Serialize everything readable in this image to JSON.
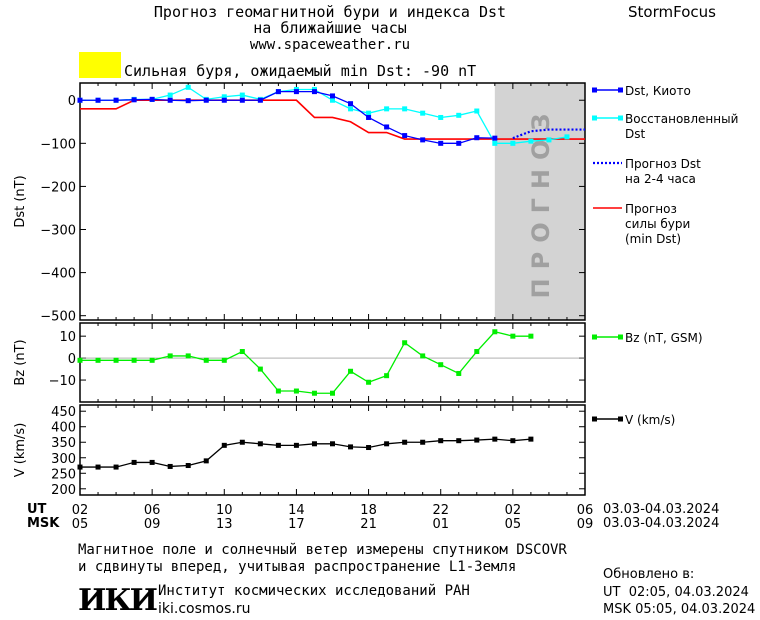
{
  "header": {
    "title_line1": "Прогноз геомагнитной бури и индекса Dst",
    "title_line2": "на ближайшие часы",
    "url": "www.spaceweather.ru",
    "brand": "StormFocus"
  },
  "alert": {
    "text": "Сильная буря, ожидаемый min Dst: -90 nT",
    "color": "#ffff00"
  },
  "prognoz_label": "ПРОГНОЗ",
  "legend": {
    "dst_kyoto": "Dst, Киото",
    "restored_1": "Восстановленный",
    "restored_2": "Dst",
    "forecast_1": "Прогноз Dst",
    "forecast_2": "на 2-4 часа",
    "storm_1": "Прогноз",
    "storm_2": "силы бури",
    "storm_3": "(min Dst)",
    "bz": "Bz (nT, GSM)",
    "v": "V (km/s)"
  },
  "time_axis": {
    "ut_label": "UT",
    "msk_label": "MSK",
    "ut_ticks": [
      "02",
      "06",
      "10",
      "14",
      "18",
      "22",
      "02",
      "06"
    ],
    "msk_ticks": [
      "05",
      "09",
      "13",
      "17",
      "21",
      "01",
      "05",
      "09"
    ],
    "date_ut": "03.03-04.03.2024",
    "date_msk": "03.03-04.03.2024"
  },
  "footer": {
    "note_1": "Магнитное поле и солнечный ветер измерены спутником DSCOVR",
    "note_2": "и сдвинуты вперед, учитывая распространение L1-Земля",
    "logo": "ИКИ",
    "institute": "Институт космических исследований РАН",
    "site": "iki.cosmos.ru",
    "updated_label": "Обновлено в:",
    "updated_ut": "UT  02:05, 04.03.2024",
    "updated_msk": "MSK 05:05, 04.03.2024"
  },
  "colors": {
    "dst": "#0000ff",
    "restored": "#00ffff",
    "storm": "#ff0000",
    "bz": "#00ee00",
    "v": "#000000",
    "forecast_band": "#d3d3d3"
  },
  "chart_data": [
    {
      "type": "line",
      "ylabel": "Dst (nT)",
      "ylim": [
        -510,
        40
      ],
      "yticks": [
        0,
        -100,
        -200,
        -300,
        -400,
        -500
      ],
      "x_unit": "hours since 02 UT 03.03",
      "xlim": [
        0,
        28
      ],
      "forecast_region": [
        23,
        28
      ],
      "series": [
        {
          "name": "Dst, Киото",
          "x": [
            0,
            1,
            2,
            3,
            4,
            5,
            6,
            7,
            8,
            9,
            10,
            11,
            12,
            13,
            14,
            15,
            16,
            17,
            18,
            19,
            20,
            21,
            22,
            23
          ],
          "y": [
            0,
            0,
            0,
            1,
            2,
            0,
            -1,
            0,
            0,
            0,
            0,
            20,
            20,
            20,
            10,
            -8,
            -40,
            -62,
            -82,
            -92,
            -100,
            -100,
            -87,
            -88
          ]
        },
        {
          "name": "Восстановленный Dst",
          "x": [
            0,
            1,
            2,
            3,
            4,
            5,
            6,
            7,
            8,
            9,
            10,
            11,
            12,
            13,
            14,
            15,
            16,
            17,
            18,
            19,
            20,
            21,
            22,
            23,
            24,
            25,
            26,
            27
          ],
          "y": [
            0,
            0,
            0,
            2,
            2,
            12,
            30,
            2,
            8,
            12,
            2,
            20,
            25,
            25,
            0,
            -20,
            -30,
            -20,
            -20,
            -30,
            -40,
            -35,
            -25,
            -100,
            -100,
            -95,
            -92,
            -85
          ]
        },
        {
          "name": "Прогноз Dst на 2-4 часа",
          "x": [
            24,
            25,
            26,
            27,
            28
          ],
          "y": [
            -88,
            -72,
            -68,
            -68,
            -68
          ]
        },
        {
          "name": "Прогноз силы бури (min Dst)",
          "x": [
            0,
            1,
            2,
            3,
            4,
            5,
            6,
            7,
            8,
            9,
            10,
            11,
            12,
            13,
            14,
            15,
            16,
            17,
            18,
            19,
            20,
            21,
            22,
            23,
            24,
            25,
            26,
            27,
            28
          ],
          "y": [
            -20,
            -20,
            -20,
            0,
            0,
            0,
            0,
            0,
            0,
            0,
            0,
            0,
            0,
            -40,
            -40,
            -50,
            -75,
            -75,
            -90,
            -90,
            -90,
            -90,
            -90,
            -90,
            -90,
            -90,
            -90,
            -90,
            -90
          ]
        }
      ]
    },
    {
      "type": "line",
      "ylabel": "Bz (nT)",
      "ylim": [
        -20,
        16
      ],
      "yticks": [
        10,
        0,
        -10
      ],
      "xlim": [
        0,
        28
      ],
      "series": [
        {
          "name": "Bz (nT, GSM)",
          "x": [
            0,
            1,
            2,
            3,
            4,
            5,
            6,
            7,
            8,
            9,
            10,
            11,
            12,
            13,
            14,
            15,
            16,
            17,
            18,
            19,
            20,
            21,
            22,
            23,
            24,
            25
          ],
          "y": [
            -1,
            -1,
            -1,
            -1,
            -1,
            1,
            1,
            -1,
            -1,
            3,
            -5,
            -15,
            -15,
            -16,
            -16,
            -6,
            -11,
            -8,
            7,
            1,
            -3,
            -7,
            3,
            12,
            10,
            10
          ]
        }
      ]
    },
    {
      "type": "line",
      "ylabel": "V (km/s)",
      "ylim": [
        180,
        470
      ],
      "yticks": [
        450,
        400,
        350,
        300,
        250,
        200
      ],
      "xlim": [
        0,
        28
      ],
      "series": [
        {
          "name": "V (km/s)",
          "x": [
            0,
            1,
            2,
            3,
            4,
            5,
            6,
            7,
            8,
            9,
            10,
            11,
            12,
            13,
            14,
            15,
            16,
            17,
            18,
            19,
            20,
            21,
            22,
            23,
            24,
            25
          ],
          "y": [
            270,
            270,
            270,
            285,
            285,
            272,
            275,
            290,
            340,
            350,
            345,
            340,
            340,
            345,
            345,
            335,
            333,
            345,
            350,
            350,
            355,
            355,
            357,
            360,
            355,
            360
          ]
        }
      ]
    }
  ]
}
